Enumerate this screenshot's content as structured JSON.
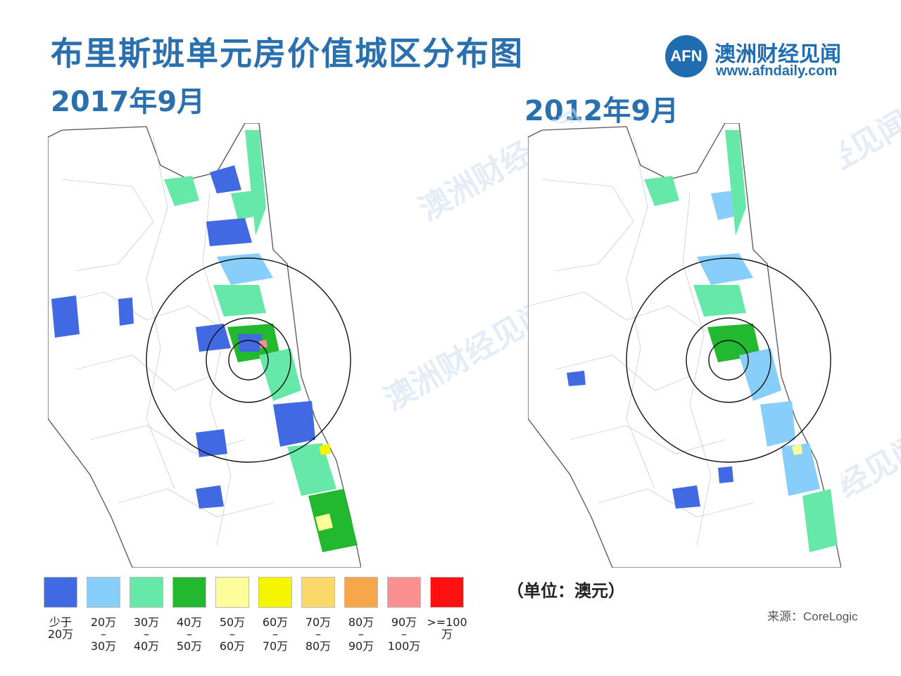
{
  "header": {
    "title": "布里斯班单元房价值城区分布图",
    "date_left": "2017年9月",
    "date_right": "2012年9月"
  },
  "brand": {
    "logo_text": "AFN",
    "name": "澳洲财经见闻",
    "url": "www.afndaily.com",
    "color": "#1f6db0"
  },
  "legend": {
    "items": [
      {
        "label": "少于\n20万",
        "color": "#4169e1"
      },
      {
        "label": "20万\n–\n30万",
        "color": "#87cefa"
      },
      {
        "label": "30万\n–\n40万",
        "color": "#66e8a8"
      },
      {
        "label": "40万\n–\n50万",
        "color": "#22b830"
      },
      {
        "label": "50万\n–\n60万",
        "color": "#fdfd9a"
      },
      {
        "label": "60万\n–\n70万",
        "color": "#f5f500"
      },
      {
        "label": "70万\n–\n80万",
        "color": "#fbd86a"
      },
      {
        "label": "80万\n–\n90万",
        "color": "#f7a64a"
      },
      {
        "label": "90万\n–\n100万",
        "color": "#fa9090"
      },
      {
        "label": ">=100万",
        "color": "#ff1010"
      }
    ]
  },
  "unit_label": "（单位：澳元）",
  "source": "来源：CoreLogic",
  "watermark": "澳洲财经见闻"
}
